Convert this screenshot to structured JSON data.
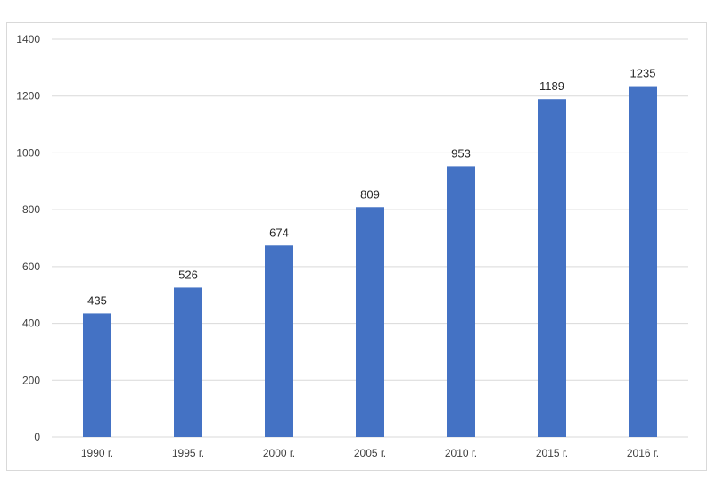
{
  "chart_data": {
    "type": "bar",
    "categories": [
      "1990 г.",
      "1995 г.",
      "2000 г.",
      "2005 г.",
      "2010 г.",
      "2015 г.",
      "2016 г."
    ],
    "values": [
      435,
      526,
      674,
      809,
      953,
      1189,
      1235
    ],
    "data_labels": [
      "435",
      "526",
      "674",
      "809",
      "953",
      "1189",
      "1235"
    ],
    "y_ticks": [
      "0",
      "200",
      "400",
      "600",
      "800",
      "1000",
      "1200",
      "1400"
    ],
    "y_tick_values": [
      0,
      200,
      400,
      600,
      800,
      1000,
      1200,
      1400
    ],
    "ylim": [
      0,
      1400
    ],
    "grid": true,
    "legend": "none",
    "bar_color": "#4472c4",
    "grid_color": "#d9d9d9"
  }
}
